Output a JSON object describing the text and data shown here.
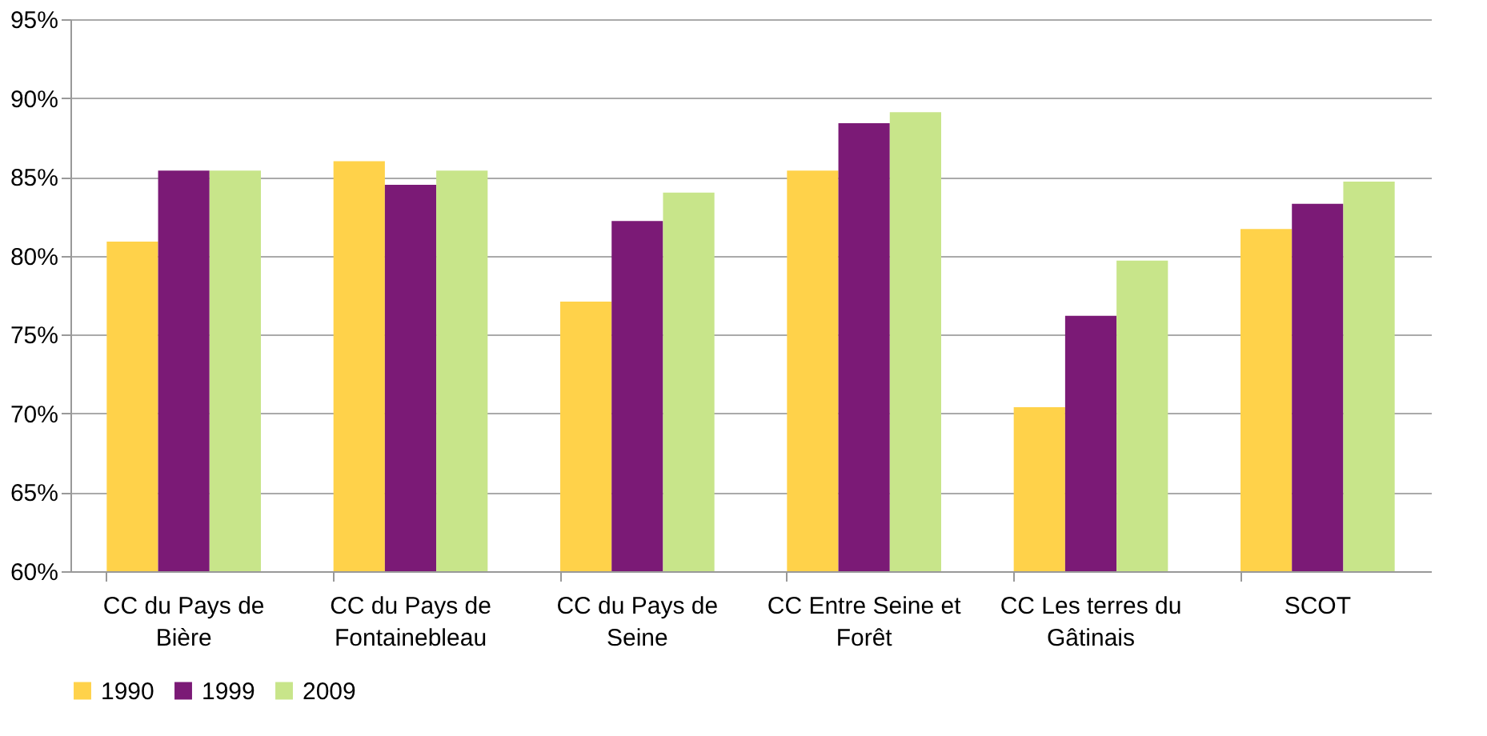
{
  "chart_data": {
    "type": "bar",
    "categories": [
      "CC du Pays de Bière",
      "CC du Pays de Fontainebleau",
      "CC du Pays de Seine",
      "CC Entre Seine et Forêt",
      "CC Les terres du Gâtinais",
      "SCOT"
    ],
    "series": [
      {
        "name": "1990",
        "color": "#ffd24a",
        "values": [
          80.9,
          86.0,
          77.1,
          85.4,
          70.4,
          81.7
        ]
      },
      {
        "name": "1999",
        "color": "#7b1a76",
        "values": [
          85.4,
          84.5,
          82.2,
          88.4,
          76.2,
          83.3
        ]
      },
      {
        "name": "2009",
        "color": "#c8e58a",
        "values": [
          85.4,
          85.4,
          84.0,
          89.1,
          79.7,
          84.7
        ]
      }
    ],
    "ylim": [
      60,
      95
    ],
    "yticks": [
      {
        "value": 60,
        "label": "60%"
      },
      {
        "value": 65,
        "label": "65%"
      },
      {
        "value": 70,
        "label": "70%"
      },
      {
        "value": 75,
        "label": "75%"
      },
      {
        "value": 80,
        "label": "80%"
      },
      {
        "value": 85,
        "label": "85%"
      },
      {
        "value": 90,
        "label": "90%"
      },
      {
        "value": 95,
        "label": "95%"
      }
    ],
    "grid": "y",
    "legend": "bottom"
  }
}
